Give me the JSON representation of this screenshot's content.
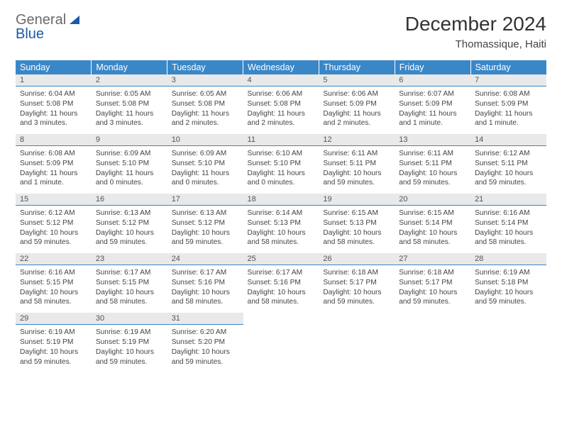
{
  "logo": {
    "line1": "General",
    "line2": "Blue"
  },
  "title": "December 2024",
  "location": "Thomassique, Haiti",
  "headers": [
    "Sunday",
    "Monday",
    "Tuesday",
    "Wednesday",
    "Thursday",
    "Friday",
    "Saturday"
  ],
  "colors": {
    "header_bg": "#3a87c8",
    "header_fg": "#ffffff",
    "daynum_bg": "#e9e9e9",
    "logo_blue": "#1b5aa8",
    "text": "#444444"
  },
  "weeks": [
    [
      {
        "n": "1",
        "sr": "6:04 AM",
        "ss": "5:08 PM",
        "dl": "11 hours and 3 minutes."
      },
      {
        "n": "2",
        "sr": "6:05 AM",
        "ss": "5:08 PM",
        "dl": "11 hours and 3 minutes."
      },
      {
        "n": "3",
        "sr": "6:05 AM",
        "ss": "5:08 PM",
        "dl": "11 hours and 2 minutes."
      },
      {
        "n": "4",
        "sr": "6:06 AM",
        "ss": "5:08 PM",
        "dl": "11 hours and 2 minutes."
      },
      {
        "n": "5",
        "sr": "6:06 AM",
        "ss": "5:09 PM",
        "dl": "11 hours and 2 minutes."
      },
      {
        "n": "6",
        "sr": "6:07 AM",
        "ss": "5:09 PM",
        "dl": "11 hours and 1 minute."
      },
      {
        "n": "7",
        "sr": "6:08 AM",
        "ss": "5:09 PM",
        "dl": "11 hours and 1 minute."
      }
    ],
    [
      {
        "n": "8",
        "sr": "6:08 AM",
        "ss": "5:09 PM",
        "dl": "11 hours and 1 minute."
      },
      {
        "n": "9",
        "sr": "6:09 AM",
        "ss": "5:10 PM",
        "dl": "11 hours and 0 minutes."
      },
      {
        "n": "10",
        "sr": "6:09 AM",
        "ss": "5:10 PM",
        "dl": "11 hours and 0 minutes."
      },
      {
        "n": "11",
        "sr": "6:10 AM",
        "ss": "5:10 PM",
        "dl": "11 hours and 0 minutes."
      },
      {
        "n": "12",
        "sr": "6:11 AM",
        "ss": "5:11 PM",
        "dl": "10 hours and 59 minutes."
      },
      {
        "n": "13",
        "sr": "6:11 AM",
        "ss": "5:11 PM",
        "dl": "10 hours and 59 minutes."
      },
      {
        "n": "14",
        "sr": "6:12 AM",
        "ss": "5:11 PM",
        "dl": "10 hours and 59 minutes."
      }
    ],
    [
      {
        "n": "15",
        "sr": "6:12 AM",
        "ss": "5:12 PM",
        "dl": "10 hours and 59 minutes."
      },
      {
        "n": "16",
        "sr": "6:13 AM",
        "ss": "5:12 PM",
        "dl": "10 hours and 59 minutes."
      },
      {
        "n": "17",
        "sr": "6:13 AM",
        "ss": "5:12 PM",
        "dl": "10 hours and 59 minutes."
      },
      {
        "n": "18",
        "sr": "6:14 AM",
        "ss": "5:13 PM",
        "dl": "10 hours and 58 minutes."
      },
      {
        "n": "19",
        "sr": "6:15 AM",
        "ss": "5:13 PM",
        "dl": "10 hours and 58 minutes."
      },
      {
        "n": "20",
        "sr": "6:15 AM",
        "ss": "5:14 PM",
        "dl": "10 hours and 58 minutes."
      },
      {
        "n": "21",
        "sr": "6:16 AM",
        "ss": "5:14 PM",
        "dl": "10 hours and 58 minutes."
      }
    ],
    [
      {
        "n": "22",
        "sr": "6:16 AM",
        "ss": "5:15 PM",
        "dl": "10 hours and 58 minutes."
      },
      {
        "n": "23",
        "sr": "6:17 AM",
        "ss": "5:15 PM",
        "dl": "10 hours and 58 minutes."
      },
      {
        "n": "24",
        "sr": "6:17 AM",
        "ss": "5:16 PM",
        "dl": "10 hours and 58 minutes."
      },
      {
        "n": "25",
        "sr": "6:17 AM",
        "ss": "5:16 PM",
        "dl": "10 hours and 58 minutes."
      },
      {
        "n": "26",
        "sr": "6:18 AM",
        "ss": "5:17 PM",
        "dl": "10 hours and 59 minutes."
      },
      {
        "n": "27",
        "sr": "6:18 AM",
        "ss": "5:17 PM",
        "dl": "10 hours and 59 minutes."
      },
      {
        "n": "28",
        "sr": "6:19 AM",
        "ss": "5:18 PM",
        "dl": "10 hours and 59 minutes."
      }
    ],
    [
      {
        "n": "29",
        "sr": "6:19 AM",
        "ss": "5:19 PM",
        "dl": "10 hours and 59 minutes."
      },
      {
        "n": "30",
        "sr": "6:19 AM",
        "ss": "5:19 PM",
        "dl": "10 hours and 59 minutes."
      },
      {
        "n": "31",
        "sr": "6:20 AM",
        "ss": "5:20 PM",
        "dl": "10 hours and 59 minutes."
      },
      null,
      null,
      null,
      null
    ]
  ],
  "labels": {
    "sunrise": "Sunrise:",
    "sunset": "Sunset:",
    "daylight": "Daylight:"
  }
}
